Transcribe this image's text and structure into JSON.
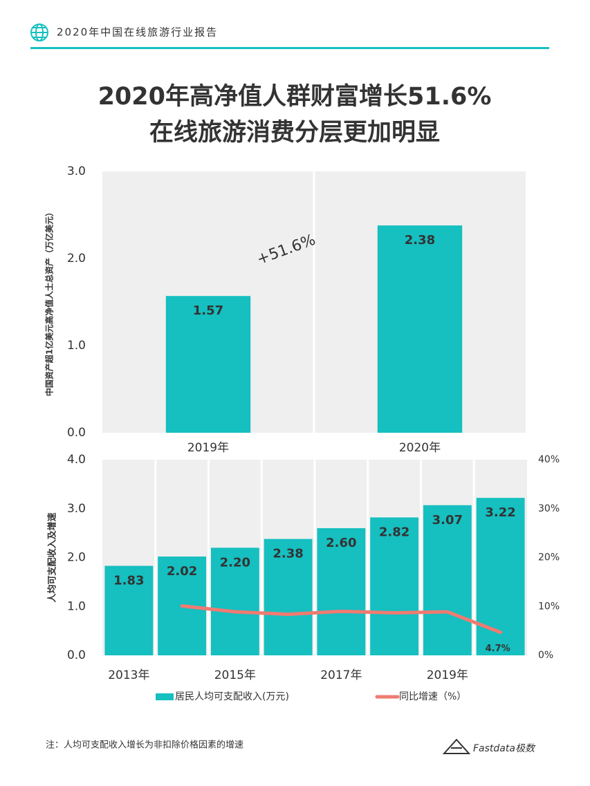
{
  "header": "2020年中国在线旅游行业报告",
  "title": [
    "2020年高净值人群财富增长51.6%",
    "在线旅游消费分层更加明显"
  ],
  "chart_data": [
    {
      "type": "bar",
      "ylabel": "中国资产超1亿美元高净值人士总资产（万亿美元）",
      "categories": [
        "2019年",
        "2020年"
      ],
      "values": [
        1.57,
        2.38
      ],
      "color": "#16bfc0",
      "ylim": [
        0,
        3
      ],
      "yticks": [
        {
          "value": 0,
          "label": "0.0"
        },
        {
          "value": 1,
          "label": "1.0"
        },
        {
          "value": 2,
          "label": "2.0"
        },
        {
          "value": 3,
          "label": "3.0"
        }
      ],
      "annotation": "+51.6%"
    },
    {
      "type": "bar-line",
      "ylabel": "人均可支配收入及增速",
      "categories": [
        "2013年",
        null,
        "2015年",
        null,
        "2017年",
        null,
        "2019年",
        null
      ],
      "series": [
        {
          "name": "居民人均可支配收入(万元)",
          "color": "#16bfc0",
          "values": [
            1.83,
            2.02,
            2.2,
            2.38,
            2.6,
            2.82,
            3.07,
            3.22
          ],
          "value_labels": [
            "1.83",
            "2.02",
            "2.20",
            "2.38",
            "2.60",
            "2.82",
            "3.07",
            "3.22"
          ]
        },
        {
          "name": "同比增速（%）",
          "color": "#ef7b72",
          "axis": "y2",
          "values": [
            null,
            10.1,
            8.9,
            8.4,
            9.0,
            8.7,
            8.9,
            4.7
          ],
          "value_labels": [
            null,
            null,
            null,
            null,
            null,
            null,
            null,
            "4.7%"
          ]
        }
      ],
      "ylim": [
        0,
        4
      ],
      "yticks": [
        {
          "value": 0,
          "label": "0.0"
        },
        {
          "value": 1,
          "label": "1.0"
        },
        {
          "value": 2,
          "label": "2.0"
        },
        {
          "value": 3,
          "label": "3.0"
        },
        {
          "value": 4,
          "label": "4.0"
        }
      ],
      "y2lim": [
        0,
        40
      ],
      "y2ticks": [
        {
          "value": 0,
          "label": "0%"
        },
        {
          "value": 10,
          "label": "10%"
        },
        {
          "value": 20,
          "label": "20%"
        },
        {
          "value": 30,
          "label": "30%"
        },
        {
          "value": 40,
          "label": "40%"
        }
      ]
    }
  ],
  "note": "注：人均可支配收入增长为非扣除价格因素的增速",
  "brand": "Fastdata极数"
}
